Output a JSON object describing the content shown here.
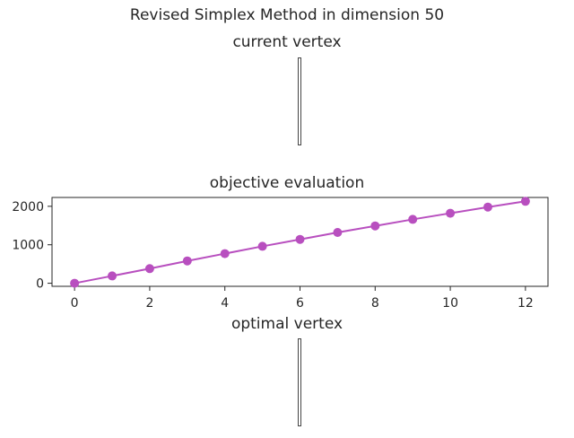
{
  "figure": {
    "title": "Revised Simplex Method in dimension 50",
    "panels": {
      "current_vertex": {
        "title": "current vertex"
      },
      "objective": {
        "title": "objective evaluation"
      },
      "optimal_vertex": {
        "title": "optimal vertex"
      }
    }
  },
  "colors": {
    "series": "#b84fbf",
    "axes": "#262626"
  },
  "chart_data": [
    {
      "type": "line",
      "title": "objective evaluation",
      "xlabel": "",
      "ylabel": "",
      "x": [
        0,
        1,
        2,
        3,
        4,
        5,
        6,
        7,
        8,
        9,
        10,
        11,
        12
      ],
      "series": [
        {
          "values": [
            0,
            190,
            380,
            580,
            770,
            960,
            1140,
            1320,
            1490,
            1660,
            1820,
            1980,
            2130
          ]
        }
      ],
      "xlim": [
        -0.6,
        12.6
      ],
      "ylim": [
        -80,
        2230
      ],
      "xticks": [
        "0",
        "2",
        "4",
        "6",
        "8",
        "10",
        "12"
      ],
      "yticks": [
        "0",
        "1000",
        "2000"
      ],
      "markers": true,
      "grid": false,
      "legend": "none"
    }
  ]
}
